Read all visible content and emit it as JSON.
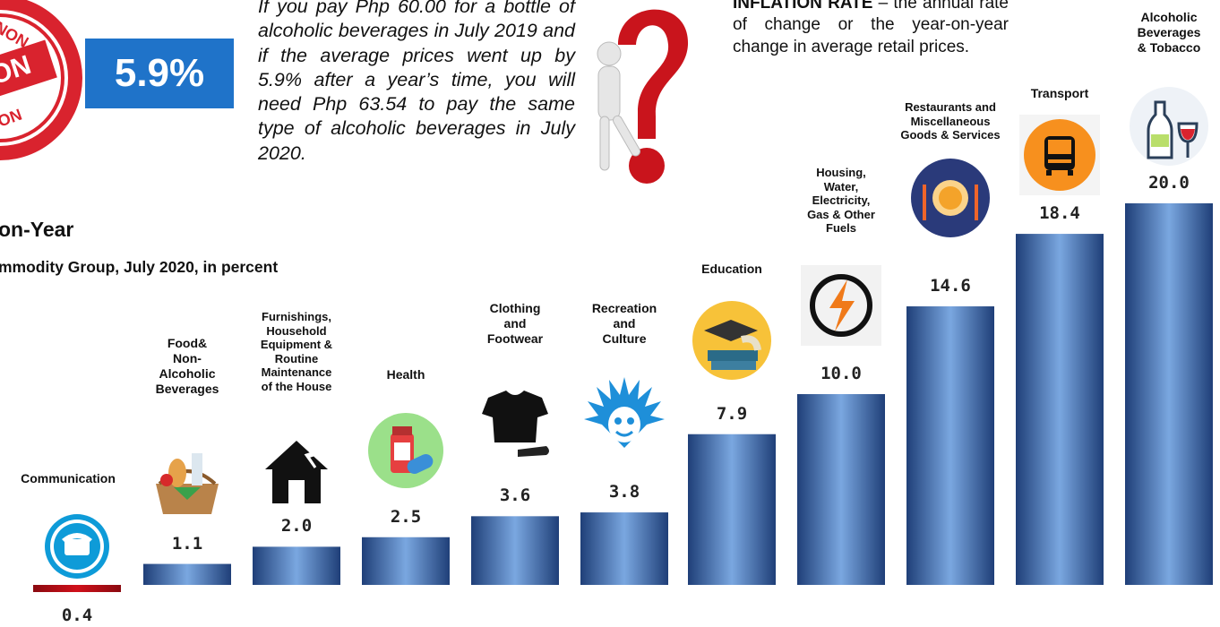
{
  "badge": {
    "value": "5.9%"
  },
  "example_text": "If you pay Php 60.00 for a bottle of alcoholic beverages in July 2019 and if the average prices went up by 5.9% after a year’s time, you will need Php 63.54 to pay the same type of alcoholic beverages in July 2020.",
  "definition": {
    "term": "INFLATION RATE",
    "dash": " – the",
    "text": "annual rate of change or the year-on-year change in average retail prices."
  },
  "titles": {
    "line1": "on-Year",
    "line2": "mmodity Group, July 2020, in percent"
  },
  "chart_data": {
    "type": "bar",
    "categories": [
      "Communication",
      "Food&\nNon-\nAlcoholic\nBeverages",
      "Furnishings,\nHousehold\nEquipment &\nRoutine\nMaintenance\nof the House",
      "Health",
      "Clothing\nand\nFootwear",
      "Recreation\nand\nCulture",
      "Education",
      "Housing,\nWater,\nElectricity,\nGas & Other\nFuels",
      "Restaurants and\nMiscellaneous\nGoods & Services",
      "Transport",
      "Alcoholic\nBeverages\n& Tobacco"
    ],
    "values": [
      0.4,
      1.1,
      2.0,
      2.5,
      3.6,
      3.8,
      7.9,
      10.0,
      14.6,
      18.4,
      20.0
    ],
    "value_labels": [
      "0.4",
      "1.1",
      "2.0",
      "2.5",
      "3.6",
      "3.8",
      "7.9",
      "10.0",
      "14.6",
      "18.4",
      "20.0"
    ],
    "icons": [
      "telephone-icon",
      "grocery-basket-icon",
      "house-repair-icon",
      "medicine-icon",
      "shirt-shoe-icon",
      "mask-icon",
      "graduation-books-icon",
      "electricity-icon",
      "dining-plate-icon",
      "bus-icon",
      "wine-bottle-glass-icon"
    ],
    "colors": {
      "bar": "#3d6fb5",
      "bar_light": "#7aa7e0",
      "bar_dark": "#1f3f78",
      "negative_bar": "#d0101a"
    },
    "ylim": [
      0,
      20
    ]
  }
}
